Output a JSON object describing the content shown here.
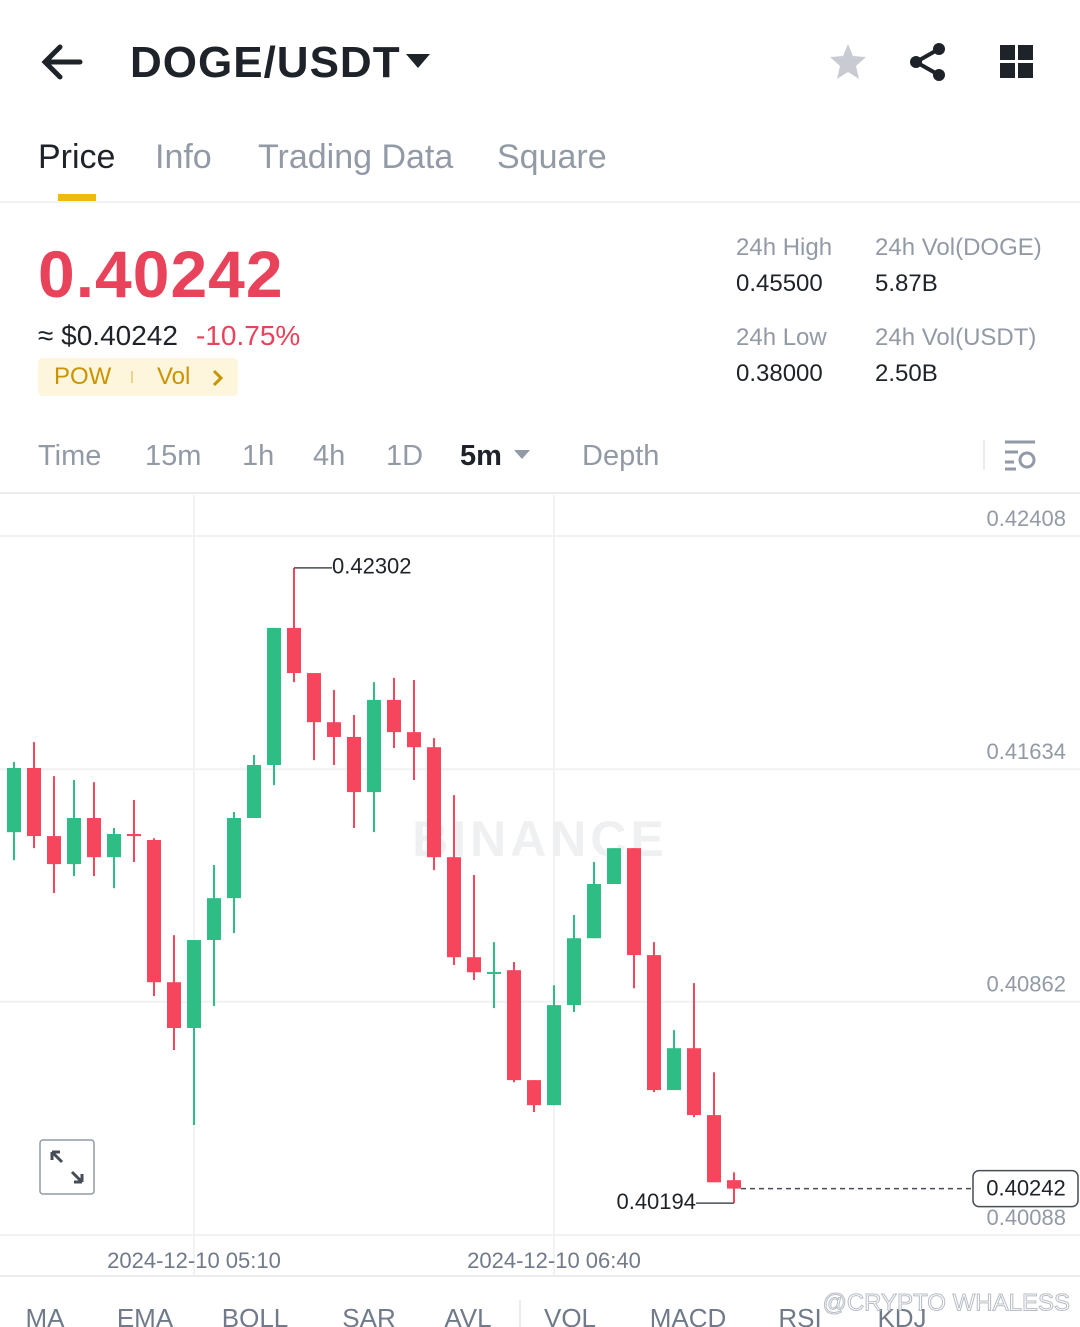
{
  "header": {
    "pair": "DOGE/USDT"
  },
  "tabs": {
    "items": [
      "Price",
      "Info",
      "Trading Data",
      "Square"
    ],
    "active": 0
  },
  "ticker": {
    "price": "0.40242",
    "approx": "≈ $0.40242",
    "change": "-10.75%",
    "tags": [
      "POW",
      "Vol"
    ],
    "stats": [
      {
        "label": "24h High",
        "value": "0.45500"
      },
      {
        "label": "24h Vol(DOGE)",
        "value": "5.87B"
      },
      {
        "label": "24h Low",
        "value": "0.38000"
      },
      {
        "label": "24h Vol(USDT)",
        "value": "2.50B"
      }
    ]
  },
  "timeframes": {
    "items": [
      "Time",
      "15m",
      "1h",
      "4h",
      "1D",
      "5m",
      "Depth"
    ],
    "active": 5
  },
  "chart_data": {
    "type": "candlestick",
    "watermark": "BINANCE",
    "up_color": "#2ebd85",
    "down_color": "#f6465d",
    "ylim": [
      0.40088,
      0.42408
    ],
    "yticks": [
      0.42408,
      0.41634,
      0.40862,
      0.40088
    ],
    "grid": true,
    "last_price": 0.40242,
    "categories": [
      null,
      null,
      null,
      null,
      null,
      null,
      null,
      null,
      null,
      "2024-12-10 05:10",
      null,
      null,
      null,
      null,
      null,
      null,
      null,
      null,
      null,
      null,
      null,
      null,
      null,
      null,
      null,
      null,
      null,
      "2024-12-10 06:40",
      null,
      null,
      null,
      null,
      null,
      null,
      null,
      null,
      null
    ],
    "candles": [
      {
        "open": 0.41425,
        "high": 0.41658,
        "low": 0.41332,
        "close": 0.41638
      },
      {
        "open": 0.41638,
        "high": 0.41724,
        "low": 0.41372,
        "close": 0.41412
      },
      {
        "open": 0.41412,
        "high": 0.41611,
        "low": 0.41223,
        "close": 0.41319
      },
      {
        "open": 0.41319,
        "high": 0.41598,
        "low": 0.41279,
        "close": 0.41472
      },
      {
        "open": 0.41472,
        "high": 0.41591,
        "low": 0.41279,
        "close": 0.41342
      },
      {
        "open": 0.41342,
        "high": 0.41439,
        "low": 0.41239,
        "close": 0.41419
      },
      {
        "open": 0.41419,
        "high": 0.41532,
        "low": 0.41326,
        "close": 0.41412
      },
      {
        "open": 0.41399,
        "high": 0.41405,
        "low": 0.40881,
        "close": 0.40927
      },
      {
        "open": 0.40927,
        "high": 0.41083,
        "low": 0.40702,
        "close": 0.40775
      },
      {
        "open": 0.40775,
        "high": 0.41067,
        "low": 0.40453,
        "close": 0.41067
      },
      {
        "open": 0.41067,
        "high": 0.41316,
        "low": 0.40848,
        "close": 0.41206
      },
      {
        "open": 0.41206,
        "high": 0.41492,
        "low": 0.4109,
        "close": 0.41472
      },
      {
        "open": 0.41472,
        "high": 0.41681,
        "low": 0.41472,
        "close": 0.41648
      },
      {
        "open": 0.41648,
        "high": 0.42103,
        "low": 0.41581,
        "close": 0.42103
      },
      {
        "open": 0.42103,
        "high": 0.42302,
        "low": 0.41923,
        "close": 0.41953
      },
      {
        "open": 0.41953,
        "high": 0.41953,
        "low": 0.41664,
        "close": 0.4179
      },
      {
        "open": 0.4179,
        "high": 0.41897,
        "low": 0.41648,
        "close": 0.41741
      },
      {
        "open": 0.41741,
        "high": 0.41814,
        "low": 0.41439,
        "close": 0.41558
      },
      {
        "open": 0.41558,
        "high": 0.41923,
        "low": 0.41425,
        "close": 0.41864
      },
      {
        "open": 0.41864,
        "high": 0.41937,
        "low": 0.41704,
        "close": 0.41757
      },
      {
        "open": 0.41757,
        "high": 0.4193,
        "low": 0.41598,
        "close": 0.41707
      },
      {
        "open": 0.41707,
        "high": 0.41737,
        "low": 0.41299,
        "close": 0.41342
      },
      {
        "open": 0.41342,
        "high": 0.41548,
        "low": 0.40984,
        "close": 0.4101
      },
      {
        "open": 0.4101,
        "high": 0.41283,
        "low": 0.40934,
        "close": 0.4096
      },
      {
        "open": 0.4096,
        "high": 0.4106,
        "low": 0.40841,
        "close": 0.40961
      },
      {
        "open": 0.40967,
        "high": 0.40994,
        "low": 0.40595,
        "close": 0.40602
      },
      {
        "open": 0.40602,
        "high": 0.40602,
        "low": 0.40496,
        "close": 0.40519
      },
      {
        "open": 0.40519,
        "high": 0.40917,
        "low": 0.40519,
        "close": 0.40851
      },
      {
        "open": 0.40851,
        "high": 0.4115,
        "low": 0.40828,
        "close": 0.41073
      },
      {
        "open": 0.41073,
        "high": 0.41326,
        "low": 0.41073,
        "close": 0.41253
      },
      {
        "open": 0.41253,
        "high": 0.41372,
        "low": 0.41253,
        "close": 0.41372
      },
      {
        "open": 0.41372,
        "high": 0.41372,
        "low": 0.40907,
        "close": 0.41017
      },
      {
        "open": 0.41017,
        "high": 0.4106,
        "low": 0.40562,
        "close": 0.40569
      },
      {
        "open": 0.40569,
        "high": 0.40768,
        "low": 0.40569,
        "close": 0.40708
      },
      {
        "open": 0.40708,
        "high": 0.40924,
        "low": 0.40479,
        "close": 0.40486
      },
      {
        "open": 0.40486,
        "high": 0.40628,
        "low": 0.40263,
        "close": 0.40263
      },
      {
        "open": 0.4027,
        "high": 0.40296,
        "low": 0.40194,
        "close": 0.40242
      }
    ]
  },
  "indicators": [
    "MA",
    "EMA",
    "BOLL",
    "SAR",
    "AVL",
    "VOL",
    "MACD",
    "RSI",
    "KDJ"
  ],
  "credit": "@CRYPTO WHALESS"
}
